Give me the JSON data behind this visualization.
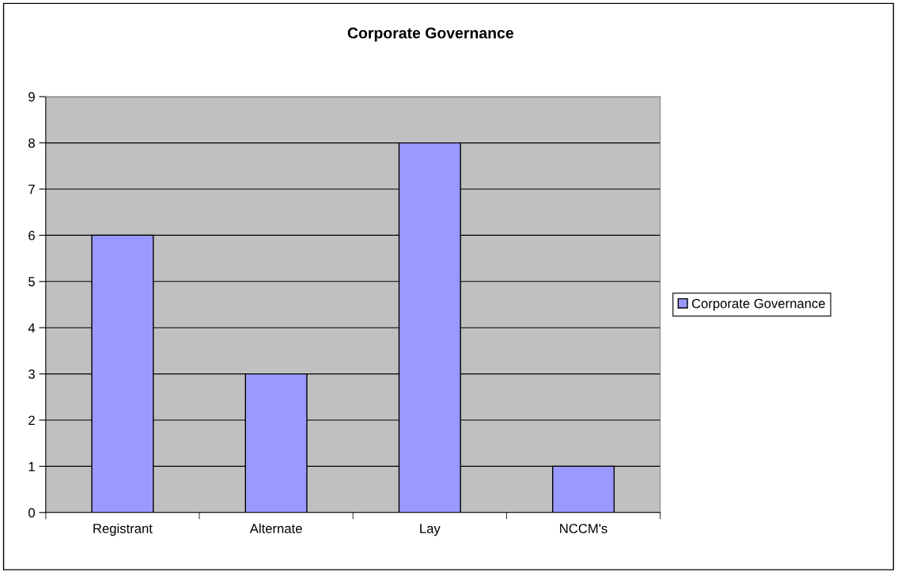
{
  "chart_data": {
    "type": "bar",
    "title": "Corporate Governance",
    "categories": [
      "Registrant",
      "Alternate",
      "Lay",
      "NCCM's"
    ],
    "series": [
      {
        "name": "Corporate Governance",
        "color": "#9999ff",
        "values": [
          6,
          3,
          8,
          1
        ]
      }
    ],
    "ylim": [
      0,
      9
    ],
    "yticks": [
      0,
      1,
      2,
      3,
      4,
      5,
      6,
      7,
      8,
      9
    ],
    "grid": "y",
    "legend": "right"
  }
}
